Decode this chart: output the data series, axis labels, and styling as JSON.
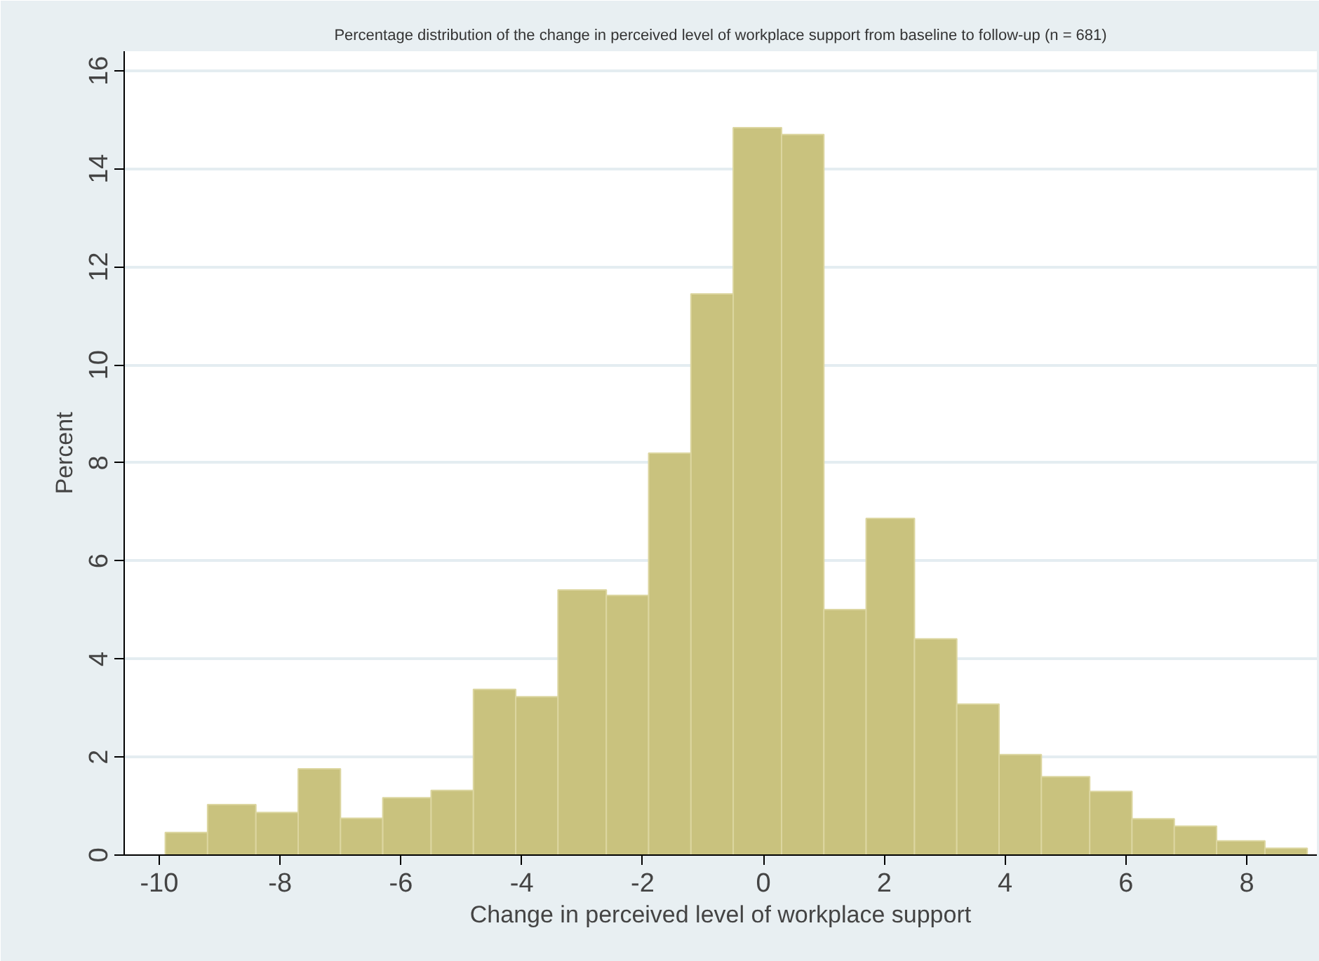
{
  "chart_data": {
    "type": "histogram",
    "title": "Percentage distribution of the change in perceived level of workplace support from baseline to follow-up (n = 681)",
    "xlabel": "Change in perceived level of workplace support",
    "ylabel": "Percent",
    "bins": [
      -9.9,
      -9.2,
      -8.4,
      -7.7,
      -7.0,
      -6.3,
      -5.5,
      -4.8,
      -4.1,
      -3.4,
      -2.6,
      -1.9,
      -1.2,
      -0.5,
      0.3,
      1.0,
      1.7,
      2.5,
      3.2,
      3.9,
      4.6,
      5.4,
      6.1,
      6.8,
      7.5,
      8.3,
      9.0
    ],
    "values": [
      0.46,
      1.03,
      0.87,
      1.76,
      0.75,
      1.17,
      1.32,
      3.38,
      3.23,
      5.41,
      5.3,
      8.2,
      11.45,
      14.84,
      14.7,
      5.01,
      6.87,
      4.41,
      3.08,
      2.05,
      1.6,
      1.3,
      0.74,
      0.59,
      0.29,
      0.14
    ],
    "color": "#c9c27e",
    "xlim": [
      -10.58,
      9.16
    ],
    "ylim": [
      0,
      16.4
    ],
    "xticks": [
      -10,
      -8,
      -6,
      -4,
      -2,
      0,
      2,
      4,
      6,
      8
    ],
    "yticks": [
      0,
      2,
      4,
      6,
      8,
      10,
      12,
      14,
      16
    ],
    "grid": "y"
  }
}
